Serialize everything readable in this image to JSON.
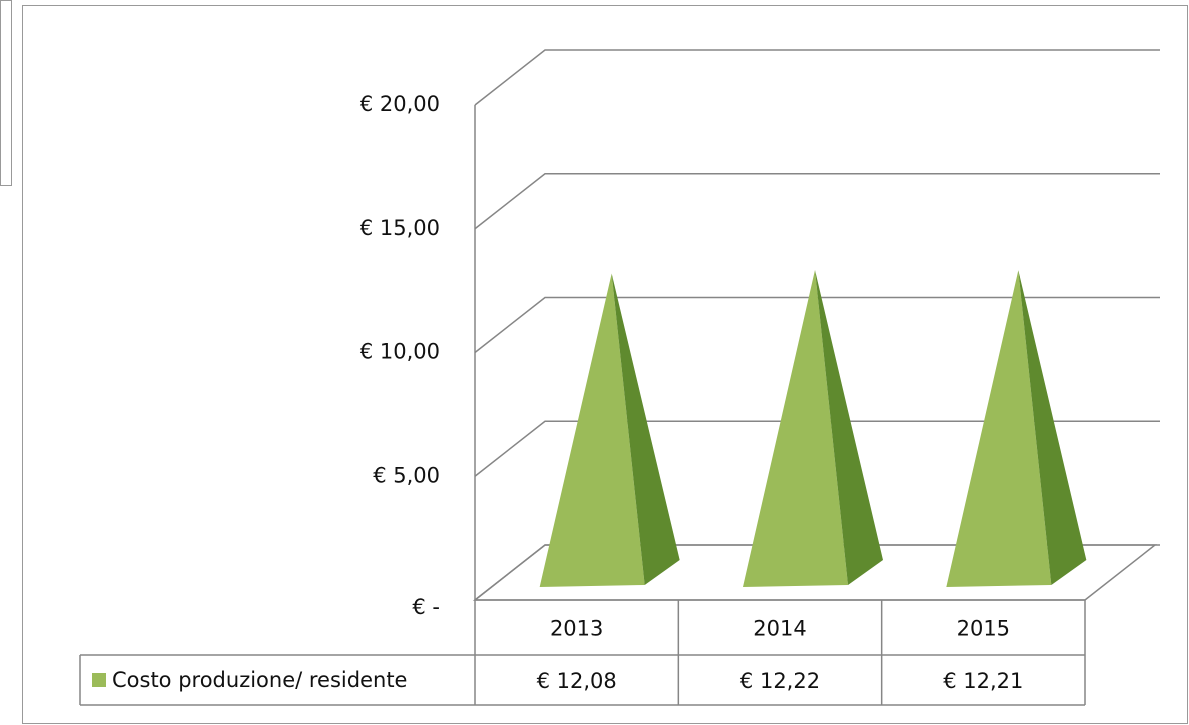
{
  "chart_data": {
    "type": "pyramid",
    "categories": [
      "2013",
      "2014",
      "2015"
    ],
    "series": [
      {
        "name": "Costo produzione/ residente",
        "color": "#9bbb59",
        "values": [
          12.08,
          12.22,
          12.21
        ],
        "value_labels": [
          "€ 12,08",
          "€ 12,22",
          "€ 12,21"
        ]
      }
    ],
    "ylim": [
      0,
      20
    ],
    "yticks": [
      {
        "value": 0,
        "label": "€ -"
      },
      {
        "value": 5,
        "label": "€ 5,00"
      },
      {
        "value": 10,
        "label": "€ 10,00"
      },
      {
        "value": 15,
        "label": "€ 15,00"
      },
      {
        "value": 20,
        "label": "€ 20,00"
      }
    ],
    "grid": true,
    "data_table": true
  }
}
